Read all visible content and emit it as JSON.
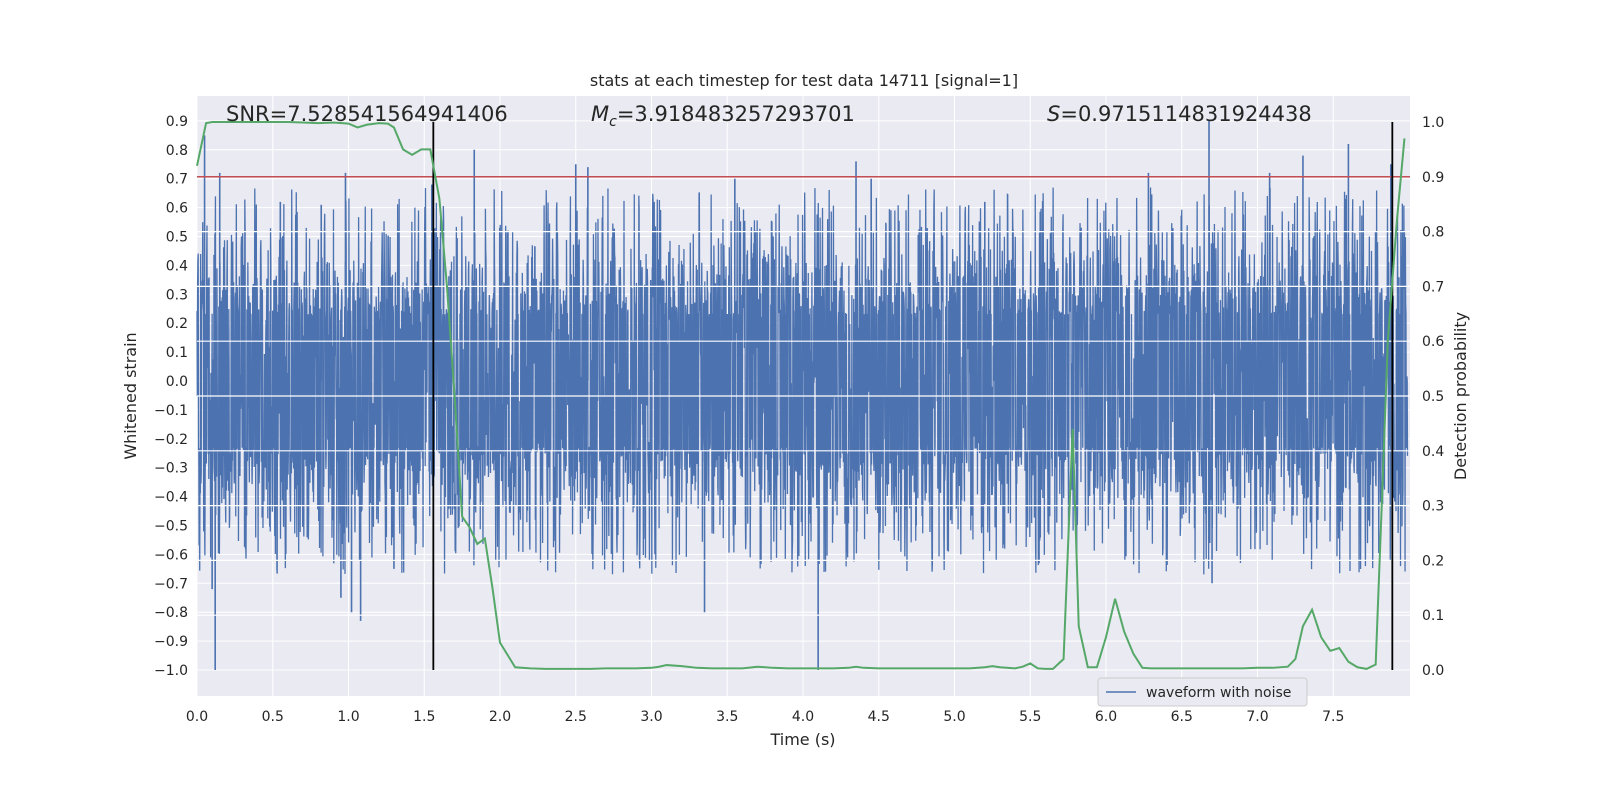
{
  "chart_data": {
    "type": "line",
    "title": "stats at each timestep for test data 14711 [signal=1]",
    "xlabel": "Time (s)",
    "ylabel_left": "Whitened strain",
    "ylabel_right": "Detection probability",
    "xlim": [
      0.0,
      8.0
    ],
    "ylim_left": [
      -1.0,
      0.9
    ],
    "ylim_right": [
      0.0,
      1.0
    ],
    "x_ticks": [
      "0.0",
      "0.5",
      "1.0",
      "1.5",
      "2.0",
      "2.5",
      "3.0",
      "3.5",
      "4.0",
      "4.5",
      "5.0",
      "5.5",
      "6.0",
      "6.5",
      "7.0",
      "7.5"
    ],
    "x_tick_values": [
      0.0,
      0.5,
      1.0,
      1.5,
      2.0,
      2.5,
      3.0,
      3.5,
      4.0,
      4.5,
      5.0,
      5.5,
      6.0,
      6.5,
      7.0,
      7.5
    ],
    "y_left_ticks": [
      "0.9",
      "0.8",
      "0.7",
      "0.6",
      "0.5",
      "0.4",
      "0.3",
      "0.2",
      "0.1",
      "0.0",
      "−0.1",
      "−0.2",
      "−0.3",
      "−0.4",
      "−0.5",
      "−0.6",
      "−0.7",
      "−0.8",
      "−0.9",
      "−1.0"
    ],
    "y_left_tick_values": [
      0.9,
      0.8,
      0.7,
      0.6,
      0.5,
      0.4,
      0.3,
      0.2,
      0.1,
      0.0,
      -0.1,
      -0.2,
      -0.3,
      -0.4,
      -0.5,
      -0.6,
      -0.7,
      -0.8,
      -0.9,
      -1.0
    ],
    "y_right_ticks": [
      "1.0",
      "0.9",
      "0.8",
      "0.7",
      "0.6",
      "0.5",
      "0.4",
      "0.3",
      "0.2",
      "0.1",
      "0.0"
    ],
    "y_right_tick_values": [
      1.0,
      0.9,
      0.8,
      0.7,
      0.6,
      0.5,
      0.4,
      0.3,
      0.2,
      0.1,
      0.0
    ],
    "annotations": {
      "snr": "SNR=7.528541564941406",
      "mc_symbol": "M",
      "mc_sub": "c",
      "mc_value": "=3.918483257293701",
      "s_symbol": "S",
      "s_value": "=0.9715114831924438"
    },
    "threshold": 0.9,
    "vertical_lines_x": [
      1.56,
      7.89
    ],
    "legend": {
      "label": "waveform with noise",
      "location": "lower-right"
    },
    "waveform": {
      "name": "waveform with noise",
      "color": "#4c72b0",
      "core_amplitude": 0.42,
      "typical_max": 0.55,
      "spikes": [
        {
          "t": 0.05,
          "v": 0.85
        },
        {
          "t": 0.1,
          "v": -0.72
        },
        {
          "t": 0.12,
          "v": -1.0
        },
        {
          "t": 0.15,
          "v": 0.72
        },
        {
          "t": 0.55,
          "v": 0.62
        },
        {
          "t": 0.82,
          "v": 0.61
        },
        {
          "t": 0.95,
          "v": -0.75
        },
        {
          "t": 0.98,
          "v": 0.72
        },
        {
          "t": 1.02,
          "v": -0.8
        },
        {
          "t": 1.08,
          "v": -0.83
        },
        {
          "t": 1.3,
          "v": -0.65
        },
        {
          "t": 1.55,
          "v": 0.68
        },
        {
          "t": 1.83,
          "v": 0.8
        },
        {
          "t": 2.5,
          "v": 0.75
        },
        {
          "t": 2.58,
          "v": 0.74
        },
        {
          "t": 3.35,
          "v": -0.8
        },
        {
          "t": 3.55,
          "v": 0.7
        },
        {
          "t": 4.1,
          "v": -1.0
        },
        {
          "t": 4.35,
          "v": 0.76
        },
        {
          "t": 4.45,
          "v": 0.7
        },
        {
          "t": 5.2,
          "v": 0.62
        },
        {
          "t": 6.28,
          "v": 0.72
        },
        {
          "t": 6.68,
          "v": 0.9
        },
        {
          "t": 6.7,
          "v": -0.7
        },
        {
          "t": 7.08,
          "v": 0.72
        },
        {
          "t": 7.3,
          "v": 0.78
        },
        {
          "t": 7.6,
          "v": 0.82
        },
        {
          "t": 7.88,
          "v": 0.75
        }
      ]
    },
    "detection_probability": {
      "name": "detection probability",
      "color": "#55a868",
      "x": [
        0.0,
        0.06,
        0.1,
        0.2,
        0.3,
        0.4,
        0.5,
        0.6,
        0.7,
        0.8,
        0.9,
        1.0,
        1.06,
        1.12,
        1.2,
        1.26,
        1.3,
        1.36,
        1.42,
        1.48,
        1.54,
        1.6,
        1.65,
        1.7,
        1.75,
        1.8,
        1.85,
        1.9,
        1.95,
        2.0,
        2.1,
        2.2,
        2.3,
        2.4,
        2.5,
        2.6,
        2.7,
        2.8,
        2.9,
        3.0,
        3.05,
        3.1,
        3.2,
        3.3,
        3.4,
        3.5,
        3.6,
        3.7,
        3.8,
        3.9,
        4.0,
        4.1,
        4.2,
        4.3,
        4.35,
        4.4,
        4.5,
        4.6,
        4.7,
        4.8,
        4.9,
        5.0,
        5.1,
        5.2,
        5.25,
        5.3,
        5.4,
        5.45,
        5.5,
        5.55,
        5.6,
        5.65,
        5.72,
        5.78,
        5.82,
        5.88,
        5.94,
        6.0,
        6.06,
        6.12,
        6.18,
        6.24,
        6.3,
        6.4,
        6.5,
        6.6,
        6.7,
        6.8,
        6.9,
        7.0,
        7.1,
        7.2,
        7.25,
        7.3,
        7.36,
        7.42,
        7.48,
        7.54,
        7.6,
        7.66,
        7.72,
        7.78,
        7.82,
        7.86,
        7.92,
        7.97
      ],
      "y": [
        0.92,
        0.998,
        1.0,
        1.0,
        1.0,
        1.0,
        1.0,
        1.0,
        0.999,
        0.998,
        0.999,
        0.997,
        0.99,
        0.995,
        0.998,
        0.997,
        0.99,
        0.95,
        0.94,
        0.95,
        0.95,
        0.86,
        0.7,
        0.5,
        0.28,
        0.26,
        0.23,
        0.24,
        0.15,
        0.05,
        0.005,
        0.003,
        0.002,
        0.002,
        0.002,
        0.002,
        0.003,
        0.003,
        0.003,
        0.004,
        0.006,
        0.009,
        0.007,
        0.004,
        0.003,
        0.003,
        0.003,
        0.006,
        0.004,
        0.003,
        0.003,
        0.003,
        0.003,
        0.004,
        0.006,
        0.004,
        0.003,
        0.003,
        0.003,
        0.003,
        0.003,
        0.003,
        0.003,
        0.005,
        0.007,
        0.005,
        0.003,
        0.006,
        0.012,
        0.003,
        0.002,
        0.002,
        0.02,
        0.44,
        0.08,
        0.005,
        0.005,
        0.06,
        0.13,
        0.07,
        0.03,
        0.004,
        0.003,
        0.003,
        0.003,
        0.003,
        0.003,
        0.003,
        0.003,
        0.004,
        0.004,
        0.006,
        0.02,
        0.08,
        0.11,
        0.06,
        0.035,
        0.04,
        0.015,
        0.005,
        0.002,
        0.01,
        0.3,
        0.6,
        0.82,
        0.97
      ]
    }
  }
}
